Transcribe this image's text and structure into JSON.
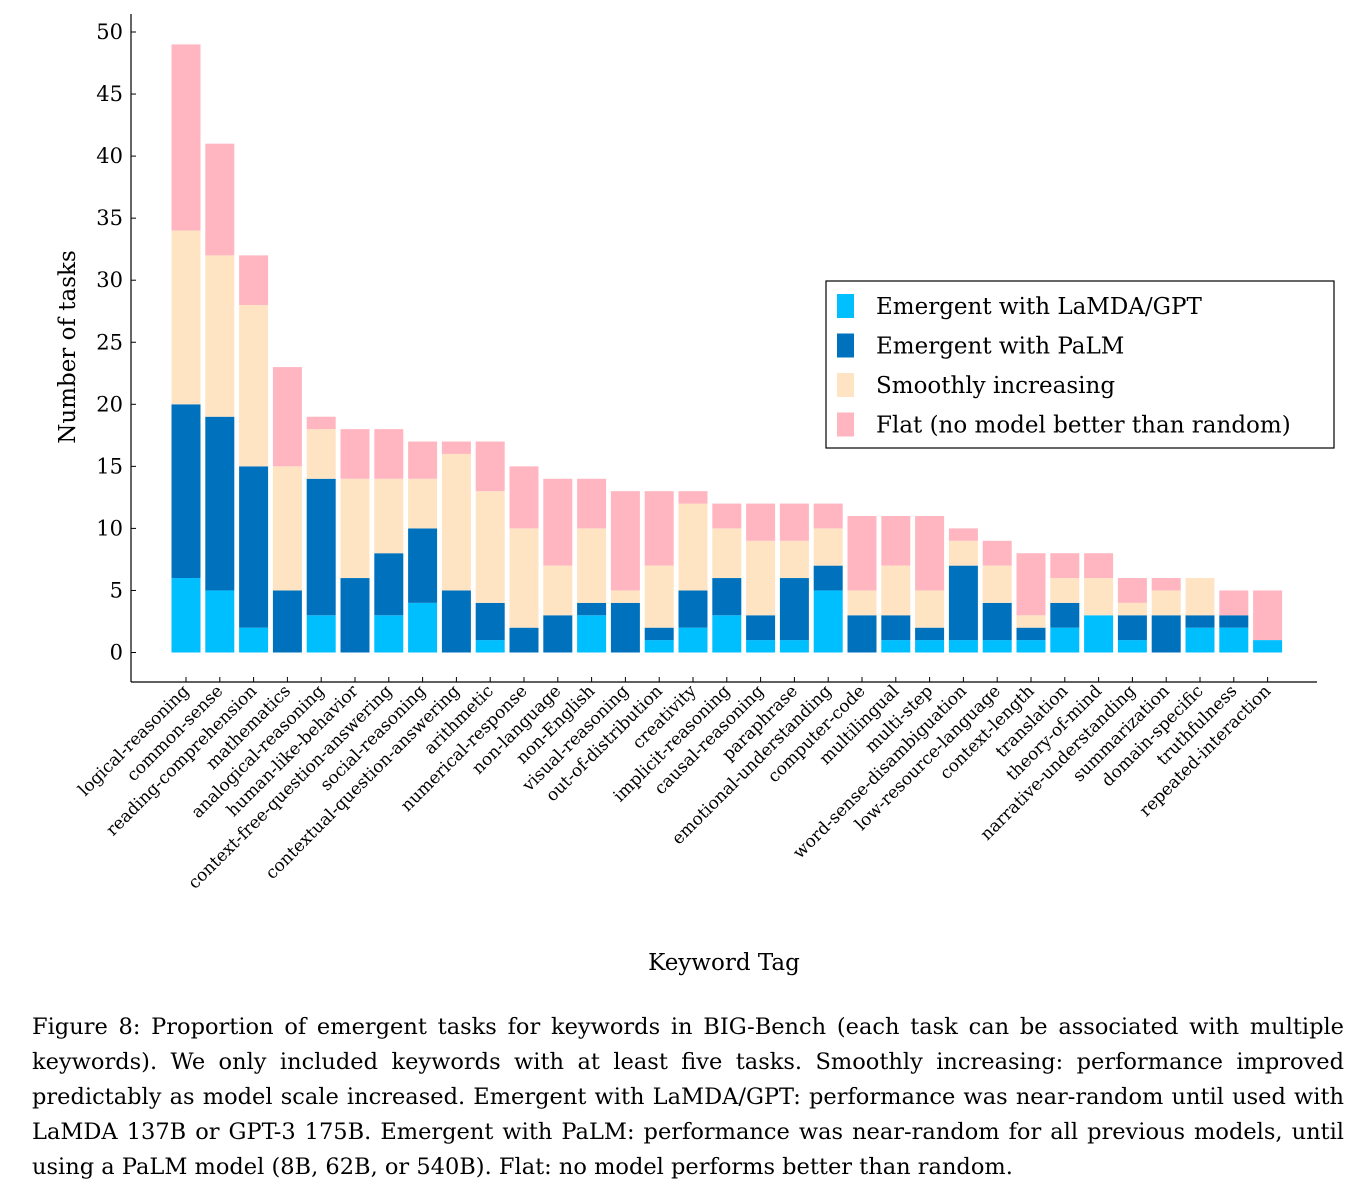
{
  "chart_data": {
    "type": "bar",
    "stacked": true,
    "title": "",
    "xlabel": "Keyword Tag",
    "ylabel": "Number of tasks",
    "ylim": [
      -2.3,
      51.5
    ],
    "yticks": [
      0,
      5,
      10,
      15,
      20,
      25,
      30,
      35,
      40,
      45,
      50
    ],
    "grid": false,
    "legend_position": "right",
    "categories": [
      "logical-reasoning",
      "common-sense",
      "reading-comprehension",
      "mathematics",
      "analogical-reasoning",
      "human-like-behavior",
      "context-free-question-answering",
      "social-reasoning",
      "contextual-question-answering",
      "arithmetic",
      "numerical-response",
      "non-language",
      "non-English",
      "visual-reasoning",
      "out-of-distribution",
      "creativity",
      "implicit-reasoning",
      "causal-reasoning",
      "paraphrase",
      "emotional-understanding",
      "computer-code",
      "multilingual",
      "multi-step",
      "word-sense-disambiguation",
      "low-resource-language",
      "context-length",
      "translation",
      "theory-of-mind",
      "narrative-understanding",
      "summarization",
      "domain-specific",
      "truthfulness",
      "repeated-interaction"
    ],
    "series": [
      {
        "name": "Emergent with LaMDA/GPT",
        "color": "#00BFFF",
        "values": [
          6,
          5,
          2,
          0,
          3,
          0,
          3,
          4,
          0,
          1,
          0,
          0,
          3,
          0,
          1,
          2,
          3,
          1,
          1,
          5,
          0,
          1,
          1,
          1,
          1,
          1,
          2,
          3,
          1,
          0,
          2,
          2,
          1
        ]
      },
      {
        "name": "Emergent with PaLM",
        "color": "#0072BD",
        "values": [
          14,
          14,
          13,
          5,
          11,
          6,
          5,
          6,
          5,
          3,
          2,
          3,
          1,
          4,
          1,
          3,
          3,
          2,
          5,
          2,
          3,
          2,
          1,
          6,
          3,
          1,
          2,
          0,
          2,
          3,
          1,
          1,
          0
        ]
      },
      {
        "name": "Smoothly increasing",
        "color": "#FFE4C4",
        "values": [
          14,
          13,
          13,
          10,
          4,
          8,
          6,
          4,
          11,
          9,
          8,
          4,
          6,
          1,
          5,
          7,
          4,
          6,
          3,
          3,
          2,
          4,
          3,
          2,
          3,
          1,
          2,
          3,
          1,
          2,
          3,
          0,
          0
        ]
      },
      {
        "name": "Flat (no model better than random)",
        "color": "#FFB6C1",
        "values": [
          15,
          9,
          4,
          8,
          1,
          4,
          4,
          3,
          1,
          4,
          5,
          7,
          4,
          8,
          6,
          1,
          2,
          3,
          3,
          2,
          6,
          4,
          6,
          1,
          2,
          5,
          2,
          2,
          2,
          1,
          0,
          2,
          4
        ]
      }
    ]
  },
  "caption": "Figure 8: Proportion of emergent tasks for keywords in BIG-Bench (each task can be associated with multiple keywords). We only included keywords with at least five tasks. Smoothly increasing: performance improved predictably as model scale increased. Emergent with LaMDA/GPT: performance was near-random until used with LaMDA 137B or GPT-3 175B. Emergent with PaLM: performance was near-random for all previous models, until using a PaLM model (8B, 62B, or 540B). Flat: no model performs better than random."
}
